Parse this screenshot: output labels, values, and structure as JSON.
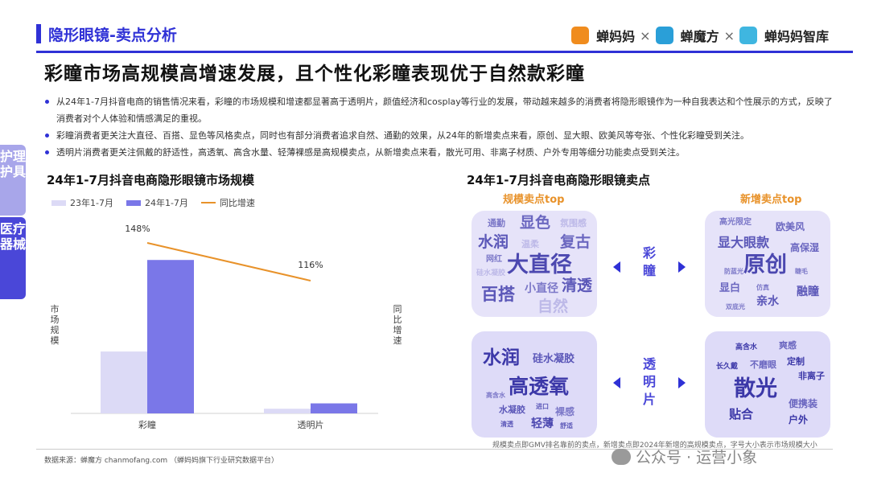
{
  "header": {
    "section_title": "隐形眼镜-卖点分析",
    "brands": [
      "蝉妈妈",
      "蝉魔方",
      "蝉妈妈智库"
    ],
    "separator": "×",
    "accent": "#2f31d6"
  },
  "main_title": "彩瞳市场高规模高增速发展，且个性化彩瞳表现优于自然款彩瞳",
  "bullets": [
    "从24年1-7月抖音电商的销售情况来看，彩瞳的市场规模和增速都显著高于透明片，颜值经济和cosplay等行业的发展，带动越来越多的消费者将隐形眼镜作为一种自我表达和个性展示的方式，反映了消费者对个人体验和情感满足的重视。",
    "彩瞳消费者更关注大直径、百搭、显色等风格卖点，同时也有部分消费者追求自然、通勤的效果，从24年的新增卖点来看，原创、显大眼、欧美风等夸张、个性化彩瞳受到关注。",
    "透明片消费者更关注佩戴的舒适性，高透氧、高含水量、轻薄裸感是高规模卖点，从新增卖点来看，散光可用、非离子材质、户外专用等细分功能卖点受到关注。"
  ],
  "side_tabs": [
    "护理护具",
    "医疗器械"
  ],
  "left_chart": {
    "title": "24年1-7月抖音电商隐形眼镜市场规模",
    "legend": [
      "23年1-7月",
      "24年1-7月",
      "同比增速"
    ],
    "y_label": "市场规模",
    "y2_label": "同比增速"
  },
  "chart_data": {
    "type": "bar",
    "categories": [
      "彩瞳",
      "透明片"
    ],
    "series": [
      {
        "name": "23年1-7月",
        "values": [
          100,
          7.5
        ],
        "color": "#dcdaf6"
      },
      {
        "name": "24年1-7月",
        "values": [
          248,
          16.2
        ],
        "color": "#7a77e8"
      }
    ],
    "line": {
      "name": "同比增速",
      "values": [
        148,
        116
      ],
      "labels": [
        "148%",
        "116%"
      ],
      "color": "#e8922a"
    },
    "ylim": [
      0,
      260
    ],
    "y2lim": [
      0,
      200
    ]
  },
  "right_panel": {
    "title": "24年1-7月抖音电商隐形眼镜卖点",
    "heads": [
      "规模卖点top",
      "新增卖点top"
    ],
    "center_labels": [
      "彩瞳",
      "透明片"
    ],
    "clouds": {
      "caitong_scale": [
        "通勤",
        "显色",
        "氛围感",
        "水润",
        "温柔",
        "复古",
        "网红",
        "大直径",
        "硅水凝胶",
        "百搭",
        "小直径",
        "清透",
        "自然"
      ],
      "caitong_new": [
        "高光限定",
        "欧美风",
        "显大眼款",
        "高保湿",
        "原创",
        "显白",
        "亲水",
        "融瞳",
        "双底光",
        "防蓝光",
        "仿真",
        "睫毛"
      ],
      "clear_scale": [
        "水润",
        "硅水凝胶",
        "高透氧",
        "高含水",
        "进口",
        "水凝胶",
        "裸感",
        "清透",
        "轻薄",
        "舒适"
      ],
      "clear_new": [
        "高含水",
        "爽感",
        "长久戴",
        "不磨眼",
        "定制",
        "非离子",
        "散光",
        "便携装",
        "贴合",
        "户外"
      ]
    }
  },
  "note": "规模卖点即GMV排名靠前的卖点，新增卖点即2024年新增的高规模卖点，字号大小表示市场规模大小",
  "source": "数据来源：蝉魔方 chanmofang.com （蝉妈妈旗下行业研究数据平台）",
  "watermark": "公众号 · 运营小象"
}
